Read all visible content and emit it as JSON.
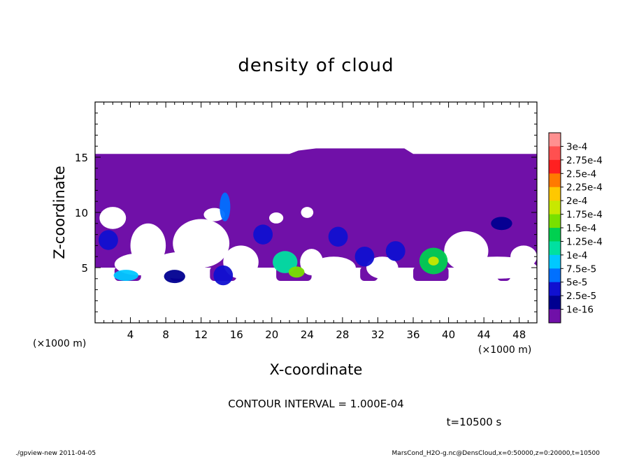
{
  "chart_data": {
    "type": "heatmap",
    "title": "density of cloud",
    "xlabel": "X-coordinate",
    "ylabel": "Z-coordinate",
    "x_unit": "(×1000 m)",
    "xlim": [
      0,
      50
    ],
    "ylim": [
      0,
      20
    ],
    "x_ticks": [
      4,
      8,
      12,
      16,
      20,
      24,
      28,
      32,
      36,
      40,
      44,
      48
    ],
    "y_ticks": [
      5,
      10,
      15
    ],
    "cloud_top_profile": {
      "x": [
        0,
        22,
        23,
        25,
        35,
        36,
        50
      ],
      "z": [
        15.3,
        15.3,
        15.6,
        15.8,
        15.8,
        15.3,
        15.3
      ]
    },
    "cloud_bottom_z": 3.8,
    "cores": [
      {
        "x": 3.5,
        "z": 4.3,
        "level": 4
      },
      {
        "x": 14.7,
        "z": 10.5,
        "level": 3
      },
      {
        "x": 14.5,
        "z": 4.3,
        "level": 2
      },
      {
        "x": 21.5,
        "z": 5.5,
        "level": 5
      },
      {
        "x": 22.8,
        "z": 4.6,
        "level": 7
      },
      {
        "x": 19.0,
        "z": 8.0,
        "level": 2
      },
      {
        "x": 1.5,
        "z": 7.5,
        "level": 2
      },
      {
        "x": 27.5,
        "z": 7.8,
        "level": 2
      },
      {
        "x": 30.5,
        "z": 6.0,
        "level": 2
      },
      {
        "x": 34.0,
        "z": 6.5,
        "level": 2
      },
      {
        "x": 38.3,
        "z": 5.6,
        "level": 6
      },
      {
        "x": 38.3,
        "z": 5.6,
        "level": 8
      },
      {
        "x": 9.0,
        "z": 4.2,
        "level": 1
      },
      {
        "x": 46.0,
        "z": 9.0,
        "level": 1
      }
    ],
    "clear_regions": [
      {
        "x": 2.0,
        "z": 9.5,
        "rx": 1.5,
        "rz": 1.0
      },
      {
        "x": 6.0,
        "z": 7.0,
        "rx": 2.0,
        "rz": 2.0
      },
      {
        "x": 5.0,
        "z": 5.3,
        "rx": 2.8,
        "rz": 1.0
      },
      {
        "x": 12.0,
        "z": 7.2,
        "rx": 3.2,
        "rz": 2.2
      },
      {
        "x": 9.5,
        "z": 5.2,
        "rx": 3.0,
        "rz": 1.2
      },
      {
        "x": 16.5,
        "z": 5.5,
        "rx": 2.0,
        "rz": 1.5
      },
      {
        "x": 24.5,
        "z": 5.5,
        "rx": 1.3,
        "rz": 1.2
      },
      {
        "x": 27.0,
        "z": 5.0,
        "rx": 2.5,
        "rz": 1.0
      },
      {
        "x": 32.5,
        "z": 5.0,
        "rx": 1.8,
        "rz": 1.0
      },
      {
        "x": 42.0,
        "z": 6.5,
        "rx": 2.5,
        "rz": 1.8
      },
      {
        "x": 45.5,
        "z": 5.0,
        "rx": 4.5,
        "rz": 1.0
      },
      {
        "x": 48.5,
        "z": 6.0,
        "rx": 1.5,
        "rz": 1.0
      },
      {
        "x": 13.5,
        "z": 9.8,
        "rx": 1.2,
        "rz": 0.6
      },
      {
        "x": 20.5,
        "z": 9.5,
        "rx": 0.8,
        "rz": 0.5
      },
      {
        "x": 24.0,
        "z": 10.0,
        "rx": 0.7,
        "rz": 0.5
      }
    ],
    "base_bumps": [
      {
        "x0": 2.2,
        "x1": 5.2
      },
      {
        "x0": 8.5,
        "x1": 10.0
      },
      {
        "x0": 13.0,
        "x1": 16.0
      },
      {
        "x0": 20.5,
        "x1": 24.5
      },
      {
        "x0": 30.0,
        "x1": 32.0
      },
      {
        "x0": 36.0,
        "x1": 40.0
      },
      {
        "x0": 45.5,
        "x1": 47.0
      }
    ],
    "colorbar": {
      "labels": [
        "3e-4",
        "2.75e-4",
        "2.5e-4",
        "2.25e-4",
        "2e-4",
        "1.75e-4",
        "1.5e-4",
        "1.25e-4",
        "1e-4",
        "7.5e-5",
        "5e-5",
        "2.5e-5",
        "1e-16"
      ],
      "colors": [
        "#ff9090",
        "#ff5050",
        "#ff2020",
        "#ff7a00",
        "#ffc800",
        "#c8e800",
        "#78e000",
        "#00d050",
        "#00e0a0",
        "#00c8ff",
        "#0070ff",
        "#1010d0",
        "#000090",
        "#7010a8"
      ]
    },
    "cloud_color": "#7010a8",
    "contour_interval": "CONTOUR INTERVAL = 1.000E-04",
    "time_label": "t=10500 s",
    "footer_left": "./gpview-new   2011-04-05",
    "footer_right": "MarsCond_H2O-g.nc@DensCloud,x=0:50000,z=0:20000,t=10500"
  }
}
